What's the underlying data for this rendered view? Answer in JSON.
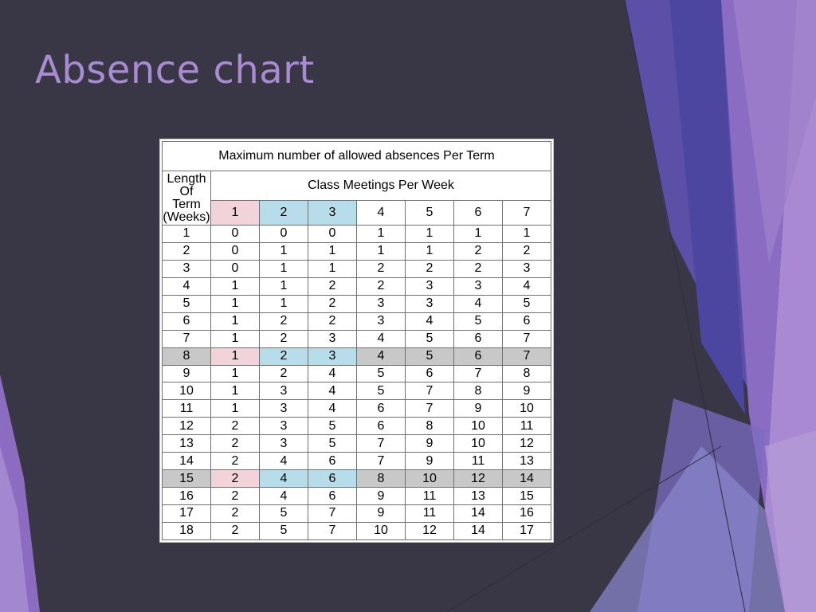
{
  "slide": {
    "title": "Absence chart"
  },
  "table": {
    "caption": "Maximum number of allowed absences Per Term",
    "term_header": [
      "Length Of",
      "Term",
      "(Weeks)"
    ],
    "meetings_header": "Class Meetings Per Week",
    "meeting_columns": [
      "1",
      "2",
      "3",
      "4",
      "5",
      "6",
      "7"
    ],
    "rows": [
      {
        "weeks": "1",
        "values": [
          "0",
          "0",
          "0",
          "1",
          "1",
          "1",
          "1"
        ]
      },
      {
        "weeks": "2",
        "values": [
          "0",
          "1",
          "1",
          "1",
          "1",
          "2",
          "2"
        ]
      },
      {
        "weeks": "3",
        "values": [
          "0",
          "1",
          "1",
          "2",
          "2",
          "2",
          "3"
        ]
      },
      {
        "weeks": "4",
        "values": [
          "1",
          "1",
          "2",
          "2",
          "3",
          "3",
          "4"
        ]
      },
      {
        "weeks": "5",
        "values": [
          "1",
          "1",
          "2",
          "3",
          "3",
          "4",
          "5"
        ]
      },
      {
        "weeks": "6",
        "values": [
          "1",
          "2",
          "2",
          "3",
          "4",
          "5",
          "6"
        ]
      },
      {
        "weeks": "7",
        "values": [
          "1",
          "2",
          "3",
          "4",
          "5",
          "6",
          "7"
        ]
      },
      {
        "weeks": "8",
        "values": [
          "1",
          "2",
          "3",
          "4",
          "5",
          "6",
          "7"
        ],
        "highlight": true
      },
      {
        "weeks": "9",
        "values": [
          "1",
          "2",
          "4",
          "5",
          "6",
          "7",
          "8"
        ]
      },
      {
        "weeks": "10",
        "values": [
          "1",
          "3",
          "4",
          "5",
          "7",
          "8",
          "9"
        ]
      },
      {
        "weeks": "11",
        "values": [
          "1",
          "3",
          "4",
          "6",
          "7",
          "9",
          "10"
        ]
      },
      {
        "weeks": "12",
        "values": [
          "2",
          "3",
          "5",
          "6",
          "8",
          "10",
          "11"
        ]
      },
      {
        "weeks": "13",
        "values": [
          "2",
          "3",
          "5",
          "7",
          "9",
          "10",
          "12"
        ]
      },
      {
        "weeks": "14",
        "values": [
          "2",
          "4",
          "6",
          "7",
          "9",
          "11",
          "13"
        ]
      },
      {
        "weeks": "15",
        "values": [
          "2",
          "4",
          "6",
          "8",
          "10",
          "12",
          "14"
        ],
        "highlight": true
      },
      {
        "weeks": "16",
        "values": [
          "2",
          "4",
          "6",
          "9",
          "11",
          "13",
          "15"
        ]
      },
      {
        "weeks": "17",
        "values": [
          "2",
          "5",
          "7",
          "9",
          "11",
          "14",
          "16"
        ]
      },
      {
        "weeks": "18",
        "values": [
          "2",
          "5",
          "7",
          "10",
          "12",
          "14",
          "17"
        ]
      }
    ]
  },
  "colors": {
    "background": "#393646",
    "title": "#a88bd0",
    "column_1": "#f2d3da",
    "columns_2_3": "#b6dde9",
    "highlight_row": "#c8c8c8"
  }
}
